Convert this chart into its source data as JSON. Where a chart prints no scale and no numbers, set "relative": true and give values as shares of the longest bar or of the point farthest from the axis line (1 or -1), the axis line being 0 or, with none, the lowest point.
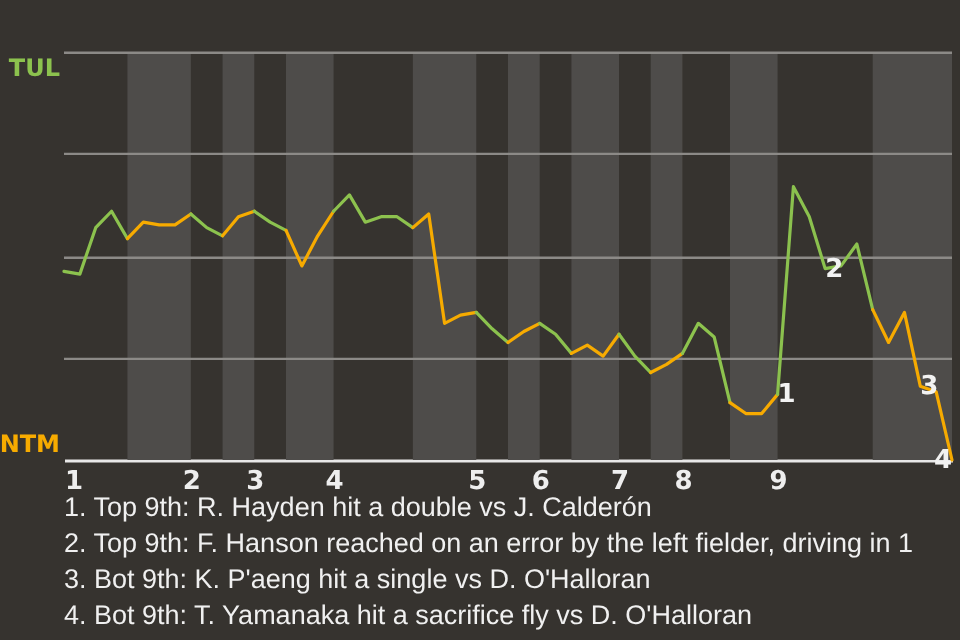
{
  "chart_data": {
    "type": "line",
    "relative": true,
    "categories": [
      "1",
      null,
      null,
      null,
      null,
      null,
      null,
      null,
      "2",
      null,
      null,
      null,
      "3",
      null,
      null,
      null,
      null,
      "4",
      null,
      null,
      null,
      null,
      null,
      null,
      null,
      null,
      "5",
      null,
      null,
      null,
      "6",
      null,
      null,
      null,
      null,
      "7",
      null,
      null,
      null,
      "8",
      null,
      null,
      null,
      null,
      null,
      "9",
      null,
      null,
      null,
      null,
      null,
      null,
      null,
      null,
      null,
      null,
      null
    ],
    "series": [
      {
        "name": "TUL",
        "color": "#8cc24e",
        "values": [
          0.69,
          0.68,
          0.85,
          0.91,
          0.81,
          null,
          null,
          null,
          null,
          null,
          null,
          null,
          null,
          null,
          null,
          null,
          null,
          null,
          null,
          null,
          null,
          null,
          null,
          null,
          null,
          null,
          null,
          null,
          null,
          null,
          null,
          null,
          null,
          null,
          null,
          null,
          null,
          null,
          null,
          null,
          null,
          null,
          null,
          null,
          null,
          null,
          null,
          null,
          null,
          null,
          null,
          null,
          null,
          null,
          null,
          null,
          null
        ]
      },
      {
        "name": "NTM",
        "color": "#f7ab00",
        "values": [
          null,
          null,
          null,
          null,
          0.81,
          0.87,
          0.86,
          0.86,
          0.9,
          null,
          null,
          null,
          null,
          null,
          null,
          null,
          null,
          null,
          null,
          null,
          null,
          null,
          null,
          null,
          null,
          null,
          null,
          null,
          null,
          null,
          null,
          null,
          null,
          null,
          null,
          null,
          null,
          null,
          null,
          null,
          null,
          null,
          null,
          null,
          null,
          null,
          null,
          null,
          null,
          null,
          null,
          null,
          null,
          null,
          null,
          null,
          null
        ]
      },
      {
        "color": "#8cc34e",
        "values": [
          null,
          null,
          null,
          null,
          null,
          null,
          null,
          null,
          0.9,
          0.85,
          0.82,
          null,
          null,
          null,
          null,
          null,
          null,
          null,
          null,
          null,
          null,
          null,
          null,
          null,
          null,
          null,
          null,
          null,
          null,
          null,
          null,
          null,
          null,
          null,
          null,
          null,
          null,
          null,
          null,
          null,
          null,
          null,
          null,
          null,
          null,
          null,
          null,
          null,
          null,
          null,
          null,
          null,
          null,
          null,
          null,
          null,
          null
        ]
      },
      {
        "color": "#f7ac00",
        "values": [
          null,
          null,
          null,
          null,
          null,
          null,
          null,
          null,
          null,
          null,
          0.82,
          0.89,
          0.91,
          null,
          null,
          null,
          null,
          null,
          null,
          null,
          null,
          null,
          null,
          null,
          null,
          null,
          null,
          null,
          null,
          null,
          null,
          null,
          null,
          null,
          null,
          null,
          null,
          null,
          null,
          null,
          null,
          null,
          null,
          null,
          null,
          null,
          null,
          null,
          null,
          null,
          null,
          null,
          null,
          null,
          null,
          null,
          null
        ]
      },
      {
        "color": "#8cc24f",
        "values": [
          null,
          null,
          null,
          null,
          null,
          null,
          null,
          null,
          null,
          null,
          null,
          null,
          0.91,
          0.87,
          0.84,
          null,
          null,
          null,
          null,
          null,
          null,
          null,
          null,
          null,
          null,
          null,
          null,
          null,
          null,
          null,
          null,
          null,
          null,
          null,
          null,
          null,
          null,
          null,
          null,
          null,
          null,
          null,
          null,
          null,
          null,
          null,
          null,
          null,
          null,
          null,
          null,
          null,
          null,
          null,
          null,
          null,
          null
        ]
      },
      {
        "color": "#f7aa00",
        "values": [
          null,
          null,
          null,
          null,
          null,
          null,
          null,
          null,
          null,
          null,
          null,
          null,
          null,
          null,
          0.84,
          0.71,
          0.82,
          0.91,
          null,
          null,
          null,
          null,
          null,
          null,
          null,
          null,
          null,
          null,
          null,
          null,
          null,
          null,
          null,
          null,
          null,
          null,
          null,
          null,
          null,
          null,
          null,
          null,
          null,
          null,
          null,
          null,
          null,
          null,
          null,
          null,
          null,
          null,
          null,
          null,
          null,
          null,
          null
        ]
      },
      {
        "color": "#8dc24e",
        "values": [
          null,
          null,
          null,
          null,
          null,
          null,
          null,
          null,
          null,
          null,
          null,
          null,
          null,
          null,
          null,
          null,
          null,
          0.91,
          0.97,
          0.87,
          0.89,
          0.89,
          0.85,
          null,
          null,
          null,
          null,
          null,
          null,
          null,
          null,
          null,
          null,
          null,
          null,
          null,
          null,
          null,
          null,
          null,
          null,
          null,
          null,
          null,
          null,
          null,
          null,
          null,
          null,
          null,
          null,
          null,
          null,
          null,
          null,
          null,
          null
        ]
      },
      {
        "color": "#f6ab00",
        "values": [
          null,
          null,
          null,
          null,
          null,
          null,
          null,
          null,
          null,
          null,
          null,
          null,
          null,
          null,
          null,
          null,
          null,
          null,
          null,
          null,
          null,
          null,
          0.85,
          0.9,
          0.5,
          0.53,
          0.54,
          null,
          null,
          null,
          null,
          null,
          null,
          null,
          null,
          null,
          null,
          null,
          null,
          null,
          null,
          null,
          null,
          null,
          null,
          null,
          null,
          null,
          null,
          null,
          null,
          null,
          null,
          null,
          null,
          null,
          null
        ]
      },
      {
        "color": "#8bc24e",
        "values": [
          null,
          null,
          null,
          null,
          null,
          null,
          null,
          null,
          null,
          null,
          null,
          null,
          null,
          null,
          null,
          null,
          null,
          null,
          null,
          null,
          null,
          null,
          null,
          null,
          null,
          null,
          0.54,
          0.48,
          0.43,
          null,
          null,
          null,
          null,
          null,
          null,
          null,
          null,
          null,
          null,
          null,
          null,
          null,
          null,
          null,
          null,
          null,
          null,
          null,
          null,
          null,
          null,
          null,
          null,
          null,
          null,
          null,
          null
        ]
      },
      {
        "color": "#f8ab00",
        "values": [
          null,
          null,
          null,
          null,
          null,
          null,
          null,
          null,
          null,
          null,
          null,
          null,
          null,
          null,
          null,
          null,
          null,
          null,
          null,
          null,
          null,
          null,
          null,
          null,
          null,
          null,
          null,
          null,
          0.43,
          0.47,
          0.5,
          null,
          null,
          null,
          null,
          null,
          null,
          null,
          null,
          null,
          null,
          null,
          null,
          null,
          null,
          null,
          null,
          null,
          null,
          null,
          null,
          null,
          null,
          null,
          null,
          null,
          null
        ]
      },
      {
        "color": "#8cc14e",
        "values": [
          null,
          null,
          null,
          null,
          null,
          null,
          null,
          null,
          null,
          null,
          null,
          null,
          null,
          null,
          null,
          null,
          null,
          null,
          null,
          null,
          null,
          null,
          null,
          null,
          null,
          null,
          null,
          null,
          null,
          null,
          0.5,
          0.46,
          0.39,
          null,
          null,
          null,
          null,
          null,
          null,
          null,
          null,
          null,
          null,
          null,
          null,
          null,
          null,
          null,
          null,
          null,
          null,
          null,
          null,
          null,
          null,
          null,
          null
        ]
      },
      {
        "color": "#f7ab01",
        "values": [
          null,
          null,
          null,
          null,
          null,
          null,
          null,
          null,
          null,
          null,
          null,
          null,
          null,
          null,
          null,
          null,
          null,
          null,
          null,
          null,
          null,
          null,
          null,
          null,
          null,
          null,
          null,
          null,
          null,
          null,
          null,
          null,
          0.39,
          0.42,
          0.38,
          0.46,
          null,
          null,
          null,
          null,
          null,
          null,
          null,
          null,
          null,
          null,
          null,
          null,
          null,
          null,
          null,
          null,
          null,
          null,
          null,
          null,
          null
        ]
      },
      {
        "color": "#8cc24d",
        "values": [
          null,
          null,
          null,
          null,
          null,
          null,
          null,
          null,
          null,
          null,
          null,
          null,
          null,
          null,
          null,
          null,
          null,
          null,
          null,
          null,
          null,
          null,
          null,
          null,
          null,
          null,
          null,
          null,
          null,
          null,
          null,
          null,
          null,
          null,
          null,
          0.46,
          0.38,
          0.32,
          null,
          null,
          null,
          null,
          null,
          null,
          null,
          null,
          null,
          null,
          null,
          null,
          null,
          null,
          null,
          null,
          null,
          null,
          null
        ]
      },
      {
        "color": "#f6ac00",
        "values": [
          null,
          null,
          null,
          null,
          null,
          null,
          null,
          null,
          null,
          null,
          null,
          null,
          null,
          null,
          null,
          null,
          null,
          null,
          null,
          null,
          null,
          null,
          null,
          null,
          null,
          null,
          null,
          null,
          null,
          null,
          null,
          null,
          null,
          null,
          null,
          null,
          null,
          0.32,
          0.35,
          0.39,
          null,
          null,
          null,
          null,
          null,
          null,
          null,
          null,
          null,
          null,
          null,
          null,
          null,
          null,
          null,
          null,
          null
        ]
      },
      {
        "color": "#8dc34e",
        "values": [
          null,
          null,
          null,
          null,
          null,
          null,
          null,
          null,
          null,
          null,
          null,
          null,
          null,
          null,
          null,
          null,
          null,
          null,
          null,
          null,
          null,
          null,
          null,
          null,
          null,
          null,
          null,
          null,
          null,
          null,
          null,
          null,
          null,
          null,
          null,
          null,
          null,
          null,
          null,
          0.39,
          0.5,
          0.45,
          0.21,
          null,
          null,
          null,
          null,
          null,
          null,
          null,
          null,
          null,
          null,
          null,
          null,
          null,
          null
        ]
      },
      {
        "color": "#f8aa00",
        "values": [
          null,
          null,
          null,
          null,
          null,
          null,
          null,
          null,
          null,
          null,
          null,
          null,
          null,
          null,
          null,
          null,
          null,
          null,
          null,
          null,
          null,
          null,
          null,
          null,
          null,
          null,
          null,
          null,
          null,
          null,
          null,
          null,
          null,
          null,
          null,
          null,
          null,
          null,
          null,
          null,
          null,
          null,
          0.21,
          0.17,
          0.17,
          0.24,
          null,
          null,
          null,
          null,
          null,
          null,
          null,
          null,
          null,
          null,
          null
        ]
      },
      {
        "color": "#8bc14e",
        "values": [
          null,
          null,
          null,
          null,
          null,
          null,
          null,
          null,
          null,
          null,
          null,
          null,
          null,
          null,
          null,
          null,
          null,
          null,
          null,
          null,
          null,
          null,
          null,
          null,
          null,
          null,
          null,
          null,
          null,
          null,
          null,
          null,
          null,
          null,
          null,
          null,
          null,
          null,
          null,
          null,
          null,
          null,
          null,
          null,
          null,
          0.24,
          1,
          0.89,
          0.7,
          0.71,
          0.79,
          0.55,
          null,
          null,
          null,
          null,
          null
        ]
      },
      {
        "color": "#f6aa00",
        "values": [
          null,
          null,
          null,
          null,
          null,
          null,
          null,
          null,
          null,
          null,
          null,
          null,
          null,
          null,
          null,
          null,
          null,
          null,
          null,
          null,
          null,
          null,
          null,
          null,
          null,
          null,
          null,
          null,
          null,
          null,
          null,
          null,
          null,
          null,
          null,
          null,
          null,
          null,
          null,
          null,
          null,
          null,
          null,
          null,
          null,
          null,
          null,
          null,
          null,
          null,
          null,
          0.55,
          0.43,
          0.54,
          0.27,
          0.25,
          0
        ]
      }
    ],
    "ref_lines": [
      {
        "axis": "y",
        "value": 0.37,
        "color": "#8c8a87"
      },
      {
        "axis": "y",
        "value": 0.74,
        "color": "#8c8a87"
      },
      {
        "axis": "y",
        "value": 1.12,
        "color": "#8c8a87"
      },
      {
        "axis": "y",
        "value": 1.49,
        "color": "#8c8a87"
      }
    ],
    "annotations": [
      {
        "text": "1",
        "y": 0.24
      },
      {
        "text": "2",
        "y": 0.7
      },
      {
        "text": "3",
        "y": 0.27
      },
      {
        "text": "4",
        "y": 0
      },
      "1. Top 9th: R. Hayden hit a double vs J. Calderón",
      "2. Top 9th: F. Hanson reached on an error by the left fielder, driving in 1",
      "3. Bot 9th: K. P'aeng hit a single vs D. O'Halloran",
      "4. Bot 9th: T. Yamanaka hit a sacrifice fly vs D. O'Halloran"
    ]
  }
}
